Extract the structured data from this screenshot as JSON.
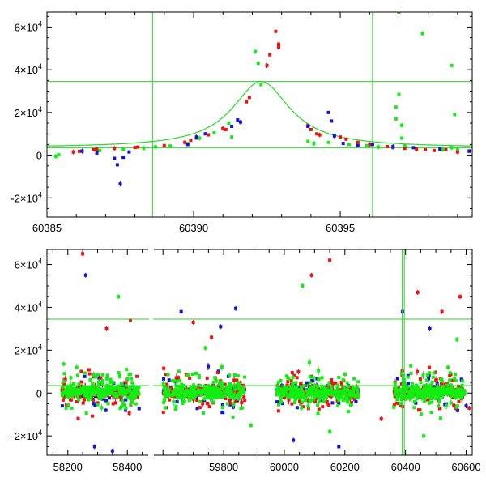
{
  "colors": {
    "frame": "#000000",
    "model": "#22dd22",
    "series_red": "#ee1111",
    "series_green": "#11ee11",
    "series_blue": "#1111dd"
  },
  "chart_data": [
    {
      "type": "scatter",
      "title": "",
      "xlabel": "",
      "ylabel": "",
      "xlim": [
        60385,
        60399.5
      ],
      "ylim": [
        -29000,
        67000
      ],
      "xticks": [
        60385,
        60390,
        60395
      ],
      "xtick_labels": [
        "60385",
        "60390",
        "60395"
      ],
      "yticks": [
        -20000,
        0,
        20000,
        40000,
        60000
      ],
      "ytick_labels": [
        [
          "-2",
          "4"
        ],
        [
          "0",
          ""
        ],
        [
          "2",
          "4"
        ],
        [
          "4",
          "4"
        ],
        [
          "6",
          "4"
        ]
      ],
      "vertical_lines": [
        60388.6,
        60396.1
      ],
      "horizontal_lines": [
        3500,
        34500
      ],
      "model_curve": {
        "t0": 60392.3,
        "peak": 34500,
        "baseline": 3500,
        "tau": 1.2
      },
      "series": [
        {
          "color": "red",
          "points": [
            [
              60385.9,
              1500
            ],
            [
              60386.1,
              1800
            ],
            [
              60386.6,
              2500
            ],
            [
              60386.7,
              2800
            ],
            [
              60387.3,
              3200
            ],
            [
              60388.0,
              3600
            ],
            [
              60388.1,
              3800
            ],
            [
              60389.0,
              4500
            ],
            [
              60389.7,
              6000
            ],
            [
              60389.9,
              7000
            ],
            [
              60390.1,
              8000
            ],
            [
              60390.5,
              9500
            ],
            [
              60391.0,
              12500
            ],
            [
              60391.1,
              12000
            ],
            [
              60391.8,
              25000
            ],
            [
              60391.9,
              27000
            ],
            [
              60392.5,
              42000
            ],
            [
              60392.6,
              47000
            ],
            [
              60392.8,
              58000
            ],
            [
              60392.9,
              52000
            ],
            [
              60392.9,
              50500
            ],
            [
              60393.9,
              14000
            ],
            [
              60394.0,
              12000
            ],
            [
              60394.2,
              10000
            ],
            [
              60394.3,
              9500
            ],
            [
              60395.0,
              8500
            ],
            [
              60395.2,
              7500
            ],
            [
              60395.6,
              6000
            ],
            [
              60396.0,
              5000
            ],
            [
              60396.6,
              4000
            ],
            [
              60396.8,
              3500
            ],
            [
              60397.2,
              3200
            ],
            [
              60397.6,
              2800
            ],
            [
              60397.9,
              2500
            ],
            [
              60398.2,
              2200
            ],
            [
              60398.6,
              2500
            ],
            [
              60399.0,
              1500
            ],
            [
              60399.4,
              2000
            ]
          ]
        },
        {
          "color": "green",
          "points": [
            [
              60385.3,
              -500
            ],
            [
              60385.4,
              200
            ],
            [
              60386.8,
              2200
            ],
            [
              60387.6,
              2800
            ],
            [
              60388.3,
              3300
            ],
            [
              60388.7,
              3900
            ],
            [
              60389.2,
              4300
            ],
            [
              60389.8,
              5500
            ],
            [
              60390.2,
              8000
            ],
            [
              60390.7,
              10500
            ],
            [
              60391.2,
              15000
            ],
            [
              60391.3,
              8500
            ],
            [
              60392.1,
              48500
            ],
            [
              60392.2,
              43000
            ],
            [
              60392.3,
              33000
            ],
            [
              60393.9,
              6500
            ],
            [
              60394.1,
              5500
            ],
            [
              60394.6,
              6000
            ],
            [
              60395.3,
              5000
            ],
            [
              60395.9,
              4500
            ],
            [
              60396.3,
              3800
            ],
            [
              60396.9,
              17000
            ],
            [
              60396.9,
              22500
            ],
            [
              60397.0,
              28500
            ],
            [
              60397.1,
              14000
            ],
            [
              60397.1,
              8000
            ],
            [
              60397.2,
              4500
            ],
            [
              60397.0,
              67000
            ],
            [
              60397.8,
              57000
            ],
            [
              60398.5,
              2500
            ],
            [
              60398.8,
              42000
            ],
            [
              60398.9,
              19000
            ],
            [
              60398.8,
              3500
            ],
            [
              60399.0,
              3000
            ]
          ]
        },
        {
          "color": "blue",
          "points": [
            [
              60386.2,
              1900
            ],
            [
              60386.7,
              1000
            ],
            [
              60387.3,
              -1500
            ],
            [
              60387.4,
              -4500
            ],
            [
              60387.5,
              -13500
            ],
            [
              60387.6,
              -1000
            ],
            [
              60387.8,
              1500
            ],
            [
              60389.8,
              5000
            ],
            [
              60390.1,
              8500
            ],
            [
              60390.4,
              10000
            ],
            [
              60391.3,
              13500
            ],
            [
              60391.5,
              16500
            ],
            [
              60391.6,
              15500
            ],
            [
              60393.9,
              13500
            ],
            [
              60394.6,
              20000
            ],
            [
              60394.7,
              16000
            ],
            [
              60394.8,
              9000
            ],
            [
              60395.1,
              5500
            ],
            [
              60395.6,
              4500
            ],
            [
              60396.1,
              5000
            ],
            [
              60396.8,
              4000
            ],
            [
              60397.5,
              3500
            ],
            [
              60398.4,
              2800
            ],
            [
              60399.4,
              1800
            ]
          ]
        }
      ]
    },
    {
      "type": "scatter",
      "title": "",
      "xlabel": "",
      "ylabel": "",
      "xlim": [
        58130,
        60620
      ],
      "ylim": [
        -29000,
        67000
      ],
      "xticks": [
        58200,
        58400,
        59800,
        60000,
        60200,
        60400,
        60600
      ],
      "xtick_labels": [
        "58200",
        "58400",
        "59800",
        "60000",
        "60200",
        "60400",
        "60600"
      ],
      "yticks": [
        -20000,
        0,
        20000,
        40000,
        60000
      ],
      "ytick_labels": [
        [
          "-2",
          "4"
        ],
        [
          "0",
          ""
        ],
        [
          "2",
          "4"
        ],
        [
          "4",
          "4"
        ],
        [
          "6",
          "4"
        ]
      ],
      "vertical_lines": [
        60388.6,
        60396.1
      ],
      "horizontal_lines": [
        3500,
        34500
      ],
      "axis_break": {
        "gap_between": [
          58470,
          59570
        ]
      },
      "seasons": [
        [
          58180,
          58440
        ],
        [
          59600,
          59870
        ],
        [
          59975,
          60245
        ],
        [
          60360,
          60595
        ]
      ],
      "outliers": {
        "red": [
          [
            58250,
            65000
          ],
          [
            58330,
            30000
          ],
          [
            58410,
            34000
          ],
          [
            59700,
            33000
          ],
          [
            59760,
            26000
          ],
          [
            60090,
            55000
          ],
          [
            60150,
            62000
          ],
          [
            60320,
            -12000
          ],
          [
            60440,
            47000
          ],
          [
            60520,
            38000
          ],
          [
            60580,
            45000
          ],
          [
            60610,
            -7000
          ]
        ],
        "green": [
          [
            58230,
            12000
          ],
          [
            58370,
            45000
          ],
          [
            59740,
            21000
          ],
          [
            59890,
            -15000
          ],
          [
            60060,
            50000
          ],
          [
            60150,
            -18000
          ],
          [
            60460,
            -20000
          ],
          [
            60540,
            12000
          ],
          [
            60570,
            25000
          ]
        ],
        "blue": [
          [
            58260,
            55000
          ],
          [
            58290,
            -25000
          ],
          [
            58350,
            -27000
          ],
          [
            59660,
            38000
          ],
          [
            59790,
            31000
          ],
          [
            59840,
            39500
          ],
          [
            60030,
            -22000
          ],
          [
            60180,
            -25000
          ],
          [
            60390,
            38000
          ],
          [
            60480,
            30000
          ],
          [
            60600,
            -6000
          ]
        ]
      }
    }
  ]
}
